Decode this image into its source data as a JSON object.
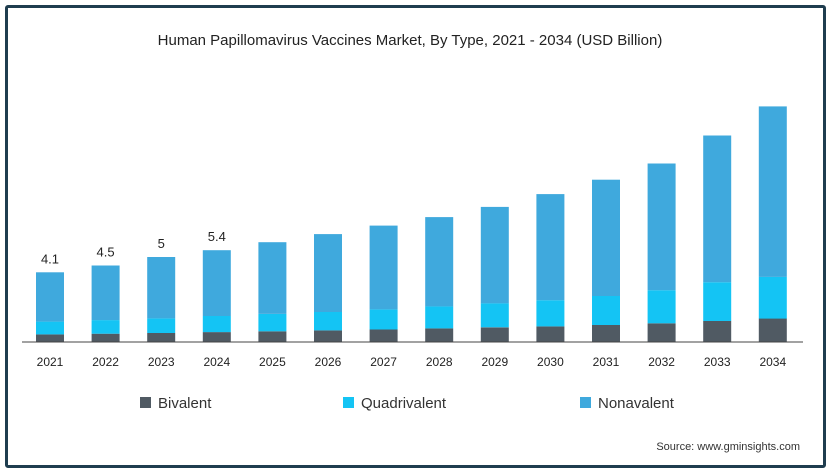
{
  "colors": {
    "bivalent": "#505a63",
    "quadrivalent": "#14c4f4",
    "nonavalent": "#3fa9dd",
    "frame": "#1f3d4f",
    "axis": "#444444"
  },
  "chart_data": {
    "type": "bar",
    "stacked": true,
    "title": "Human Papillomavirus Vaccines Market, By Type, 2021 - 2034 (USD Billion)",
    "xlabel": "",
    "ylabel": "",
    "categories": [
      "2021",
      "2022",
      "2023",
      "2024",
      "2025",
      "2026",
      "2027",
      "2028",
      "2029",
      "2030",
      "2031",
      "2032",
      "2033",
      "2034"
    ],
    "series": [
      {
        "name": "Bivalent",
        "values": [
          0.45,
          0.49,
          0.53,
          0.58,
          0.63,
          0.68,
          0.74,
          0.8,
          0.86,
          0.92,
          1.0,
          1.1,
          1.24,
          1.38
        ]
      },
      {
        "name": "Quadrivalent",
        "values": [
          0.75,
          0.8,
          0.86,
          0.95,
          1.02,
          1.09,
          1.18,
          1.3,
          1.42,
          1.54,
          1.71,
          1.95,
          2.28,
          2.45
        ]
      },
      {
        "name": "Nonavalent",
        "values": [
          2.9,
          3.21,
          3.61,
          3.87,
          4.22,
          4.58,
          4.93,
          5.25,
          5.67,
          6.24,
          6.84,
          7.45,
          8.63,
          10.03
        ]
      }
    ],
    "data_labels": [
      {
        "category": "2021",
        "text": "4.1"
      },
      {
        "category": "2022",
        "text": "4.5"
      },
      {
        "category": "2023",
        "text": "5"
      },
      {
        "category": "2024",
        "text": "5.4"
      }
    ],
    "ylim": [
      0,
      16
    ],
    "grid": false,
    "legend_position": "bottom"
  },
  "source": "Source: www.gminsights.com"
}
